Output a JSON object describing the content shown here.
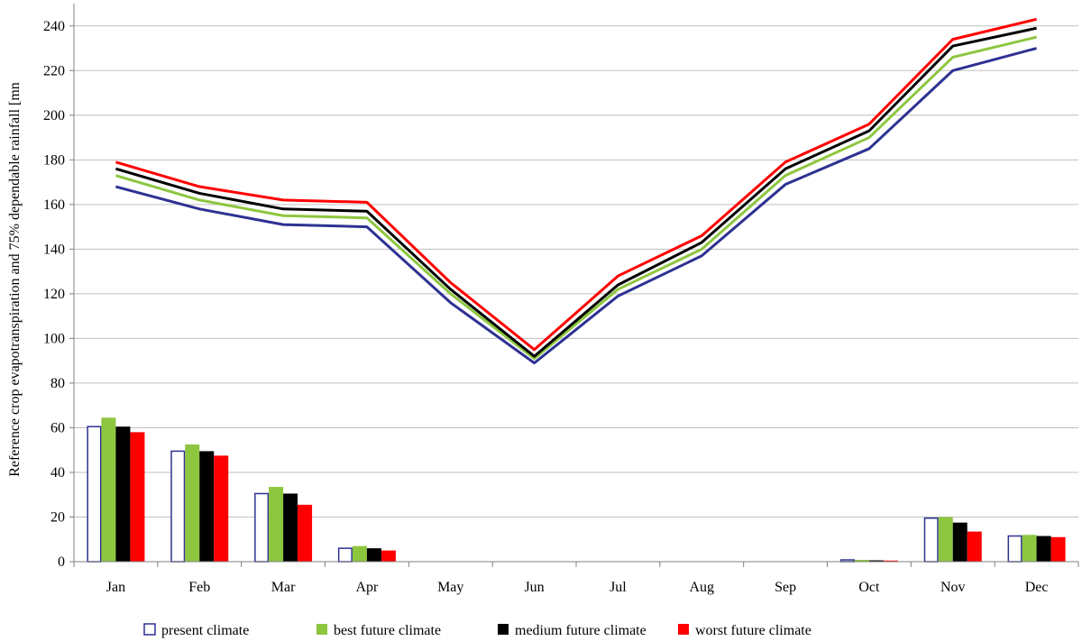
{
  "chart_data": {
    "type": "bar+line",
    "title": "",
    "xlabel": "",
    "ylabel": "Reference crop evapotranspiration and 75% dependable rainfall [mn",
    "ylim": [
      0,
      250
    ],
    "yticks": [
      0,
      20,
      40,
      60,
      80,
      100,
      120,
      140,
      160,
      180,
      200,
      220,
      240
    ],
    "grid": "horizontal",
    "legend_position": "bottom",
    "categories": [
      "Jan",
      "Feb",
      "Mar",
      "Apr",
      "May",
      "Jun",
      "Jul",
      "Aug",
      "Sep",
      "Oct",
      "Nov",
      "Dec"
    ],
    "series": [
      {
        "name": "present climate",
        "color": "#2e3192",
        "bar_style": "outline",
        "line_values": [
          168,
          158,
          151,
          150,
          116,
          89,
          119,
          137,
          169,
          185,
          220,
          230
        ],
        "bar_values": [
          60.5,
          49.5,
          30.5,
          6,
          0,
          0,
          0,
          0,
          0,
          0.8,
          19.5,
          11.5
        ]
      },
      {
        "name": "best future climate",
        "color": "#8dc63f",
        "bar_style": "filled",
        "line_values": [
          173,
          162,
          155,
          154,
          120,
          91,
          122,
          140,
          173,
          190,
          226,
          235
        ],
        "bar_values": [
          64.5,
          52.5,
          33.5,
          7,
          0,
          0,
          0,
          0,
          0,
          0.8,
          20,
          12
        ]
      },
      {
        "name": "medium future climate",
        "color": "#000000",
        "bar_style": "filled",
        "line_values": [
          176,
          165,
          158,
          157,
          122,
          92,
          124,
          143,
          176,
          193,
          231,
          239
        ],
        "bar_values": [
          60.5,
          49.5,
          30.5,
          6,
          0,
          0,
          0,
          0,
          0,
          0.6,
          17.5,
          11.5
        ]
      },
      {
        "name": "worst future climate",
        "color": "#ff0000",
        "bar_style": "filled",
        "line_values": [
          179,
          168,
          162,
          161,
          125,
          95,
          128,
          146,
          179,
          196,
          234,
          243
        ],
        "bar_values": [
          58,
          47.5,
          25.5,
          5,
          0,
          0,
          0,
          0,
          0,
          0.5,
          13.5,
          11
        ]
      }
    ]
  }
}
